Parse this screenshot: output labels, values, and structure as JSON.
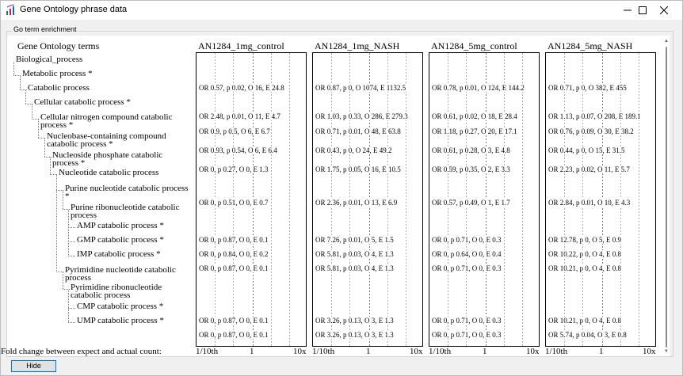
{
  "window": {
    "title": "Gene Ontology phrase data"
  },
  "group": {
    "label": "Go term enrichment"
  },
  "tree": {
    "header": "Gene Ontology terms",
    "nodes": [
      {
        "label": "Biological_process",
        "depth": 0
      },
      {
        "label": "Metabolic process *",
        "depth": 1
      },
      {
        "label": "Catabolic process",
        "depth": 2
      },
      {
        "label": "Cellular catabolic process *",
        "depth": 3
      },
      {
        "label": "Cellular nitrogen compound catabolic process *",
        "depth": 4
      },
      {
        "label": "Nucleobase-containing compound catabolic process *",
        "depth": 5
      },
      {
        "label": "Nucleoside phosphate catabolic process *",
        "depth": 6
      },
      {
        "label": "Nucleotide catabolic process",
        "depth": 7
      },
      {
        "label": "Purine nucleotide catabolic process *",
        "depth": 8
      },
      {
        "label": "Purine ribonucleotide catabolic process",
        "depth": 9
      },
      {
        "label": "AMP catabolic process *",
        "depth": 10
      },
      {
        "label": "GMP catabolic process *",
        "depth": 10
      },
      {
        "label": "IMP catabolic process *",
        "depth": 10
      },
      {
        "label": "Pyrimidine nucleotide catabolic process",
        "depth": 8
      },
      {
        "label": "Pyrimidine ribonucleotide catabolic process",
        "depth": 9
      },
      {
        "label": "CMP catabolic process *",
        "depth": 10
      },
      {
        "label": "UMP catabolic process *",
        "depth": 10
      }
    ]
  },
  "columns": [
    {
      "title": "AN1284_1mg_control",
      "rows": [
        "",
        "OR 0.57, p 0.02, O 16, E 24.8",
        "",
        "OR 2.48, p 0.01, O 11, E 4.7",
        "OR 0.9, p 0.5, O 6, E 6.7",
        "OR 0.93, p 0.54, O 6, E 6.4",
        "OR 0, p 0.27, O 0, E 1.3",
        "",
        "OR 0, p 0.51, O 0, E 0.7",
        "",
        "OR 0, p 0.87, O 0, E 0.1",
        "OR 0, p 0.84, O 0, E 0.2",
        "OR 0, p 0.87, O 0, E 0.1",
        "",
        "",
        "OR 0, p 0.87, O 0, E 0.1",
        "OR 0, p 0.87, O 0, E 0.1"
      ]
    },
    {
      "title": "AN1284_1mg_NASH",
      "rows": [
        "",
        "OR 0.87, p 0, O 1074, E 1132.5",
        "",
        "OR 1.03, p 0.33, O 286, E 279.3",
        "OR 0.71, p 0.01, O 48, E 63.8",
        "OR 0.43, p 0, O 24, E 49.2",
        "OR 1.75, p 0.05, O 16, E 10.5",
        "",
        "OR 2.36, p 0.01, O 13, E 6.9",
        "",
        "OR 7.26, p 0.01, O 5, E 1.5",
        "OR 5.81, p 0.03, O 4, E 1.3",
        "OR 5.81, p 0.03, O 4, E 1.3",
        "",
        "",
        "OR 3.26, p 0.13, O 3, E 1.3",
        "OR 3.26, p 0.13, O 3, E 1.3"
      ]
    },
    {
      "title": "AN1284_5mg_control",
      "rows": [
        "",
        "OR 0.78, p 0.01, O 124, E 144.2",
        "",
        "OR 0.61, p 0.02, O 18, E 28.4",
        "OR 1.18, p 0.27, O 20, E 17.1",
        "OR 0.61, p 0.28, O 3, E 4.8",
        "OR 0.59, p 0.35, O 2, E 3.3",
        "",
        "OR 0.57, p 0.49, O 1, E 1.7",
        "",
        "OR 0, p 0.71, O 0, E 0.3",
        "OR 0, p 0.64, O 0, E 0.4",
        "OR 0, p 0.71, O 0, E 0.3",
        "",
        "",
        "OR 0, p 0.71, O 0, E 0.3",
        "OR 0, p 0.71, O 0, E 0.3"
      ]
    },
    {
      "title": "AN1284_5mg_NASH",
      "rows": [
        "",
        "OR 0.71, p 0, O 382, E 455",
        "",
        "OR 1.13, p 0.07, O 208, E 189.1",
        "OR 0.76, p 0.09, O 30, E 38.2",
        "OR 0.44, p 0, O 15, E 31.5",
        "OR 2.23, p 0.02, O 11, E 5.7",
        "",
        "OR 2.84, p 0.01, O 10, E 4.3",
        "",
        "OR 12.78, p 0, O 5, E 0.9",
        "OR 10.22, p 0, O 4, E 0.8",
        "OR 10.21, p 0, O 4, E 0.8",
        "",
        "",
        "OR 10.21, p 0, O 4, E 0.8",
        "OR 5.74, p 0.04, O 3, E 0.8"
      ]
    }
  ],
  "footer": {
    "label": "Fold change between expect and actual count:",
    "axis_ticks": [
      "1/10th",
      "1",
      "10x"
    ]
  },
  "buttons": {
    "hide": "Hide"
  }
}
